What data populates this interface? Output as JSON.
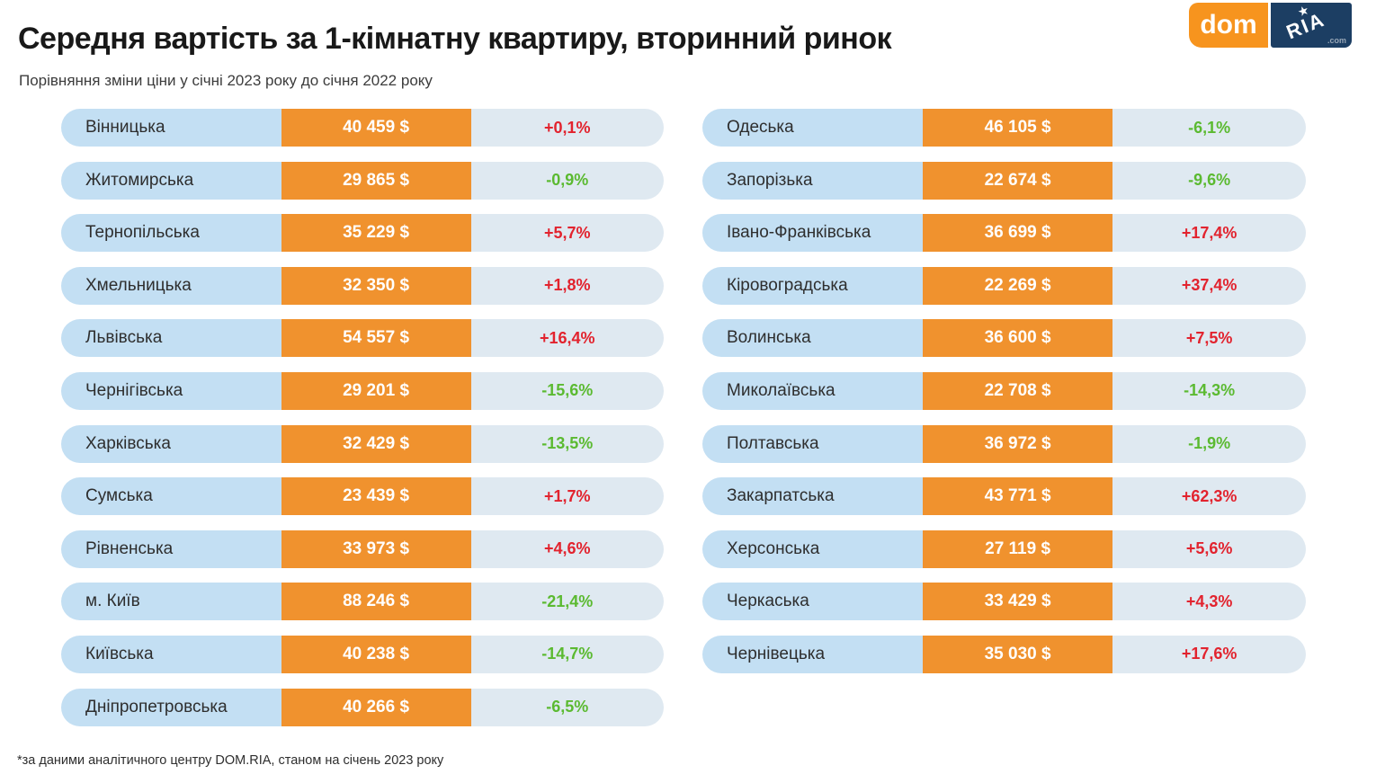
{
  "header": {
    "title": "Середня вартість за 1-кімнатну квартиру, вторинний ринок",
    "subtitle": "Порівняння зміни ціни у січні 2023 року до січня 2022 року"
  },
  "logo": {
    "dom": "dom",
    "ria": "RIA",
    "com": ".com",
    "star_icon": "star"
  },
  "footer": {
    "note": "*за даними аналітичного центру DOM.RIA, станом на січень 2023 року"
  },
  "colors": {
    "orange": "#F0922E",
    "logo-orange": "#F7941E",
    "navy": "#1C3E63",
    "blue-name": "#C3DFF3",
    "blue-light": "#DFE9F1",
    "red": "#E2232E",
    "green": "#5BBA31"
  },
  "chart_data": {
    "type": "table",
    "title": "Середня вартість за 1-кімнатну квартиру, вторинний ринок",
    "subtitle": "Порівняння зміни ціни у січні 2023 року до січня 2022 року",
    "footnote": "*за даними аналітичного центру DOM.RIA, станом на січень 2023 року",
    "columns_layout": [
      "region",
      "price",
      "change"
    ],
    "note_on_colors": "positive change shown red, negative change shown green",
    "left_column": [
      {
        "region": "Вінницька",
        "price": "40 459 $",
        "change": "+0,1%"
      },
      {
        "region": "Житомирська",
        "price": "29 865 $",
        "change": "-0,9%"
      },
      {
        "region": "Тернопільська",
        "price": "35 229 $",
        "change": "+5,7%"
      },
      {
        "region": "Хмельницька",
        "price": "32 350 $",
        "change": "+1,8%"
      },
      {
        "region": "Львівська",
        "price": "54 557 $",
        "change": "+16,4%"
      },
      {
        "region": "Чернігівська",
        "price": "29 201 $",
        "change": "-15,6%"
      },
      {
        "region": "Харківська",
        "price": "32 429 $",
        "change": "-13,5%"
      },
      {
        "region": "Сумська",
        "price": "23 439 $",
        "change": "+1,7%"
      },
      {
        "region": "Рівненська",
        "price": "33 973 $",
        "change": "+4,6%"
      },
      {
        "region": "м. Київ",
        "price": "88 246 $",
        "change": "-21,4%"
      },
      {
        "region": "Київська",
        "price": "40 238 $",
        "change": "-14,7%"
      },
      {
        "region": "Дніпропетровська",
        "price": "40 266 $",
        "change": "-6,5%"
      }
    ],
    "right_column": [
      {
        "region": "Одеська",
        "price": "46 105 $",
        "change": "-6,1%"
      },
      {
        "region": "Запорізька",
        "price": "22 674 $",
        "change": "-9,6%"
      },
      {
        "region": "Івано-Франківська",
        "price": "36 699 $",
        "change": "+17,4%"
      },
      {
        "region": "Кіровоградська",
        "price": "22 269 $",
        "change": "+37,4%"
      },
      {
        "region": "Волинська",
        "price": "36 600 $",
        "change": "+7,5%"
      },
      {
        "region": "Миколаївська",
        "price": "22 708 $",
        "change": "-14,3%"
      },
      {
        "region": "Полтавська",
        "price": "36 972 $",
        "change": "-1,9%"
      },
      {
        "region": "Закарпатська",
        "price": "43 771 $",
        "change": "+62,3%"
      },
      {
        "region": "Херсонська",
        "price": "27 119 $",
        "change": "+5,6%"
      },
      {
        "region": "Черкаська",
        "price": "33 429 $",
        "change": "+4,3%"
      },
      {
        "region": "Чернівецька",
        "price": "35 030 $",
        "change": "+17,6%"
      }
    ]
  }
}
